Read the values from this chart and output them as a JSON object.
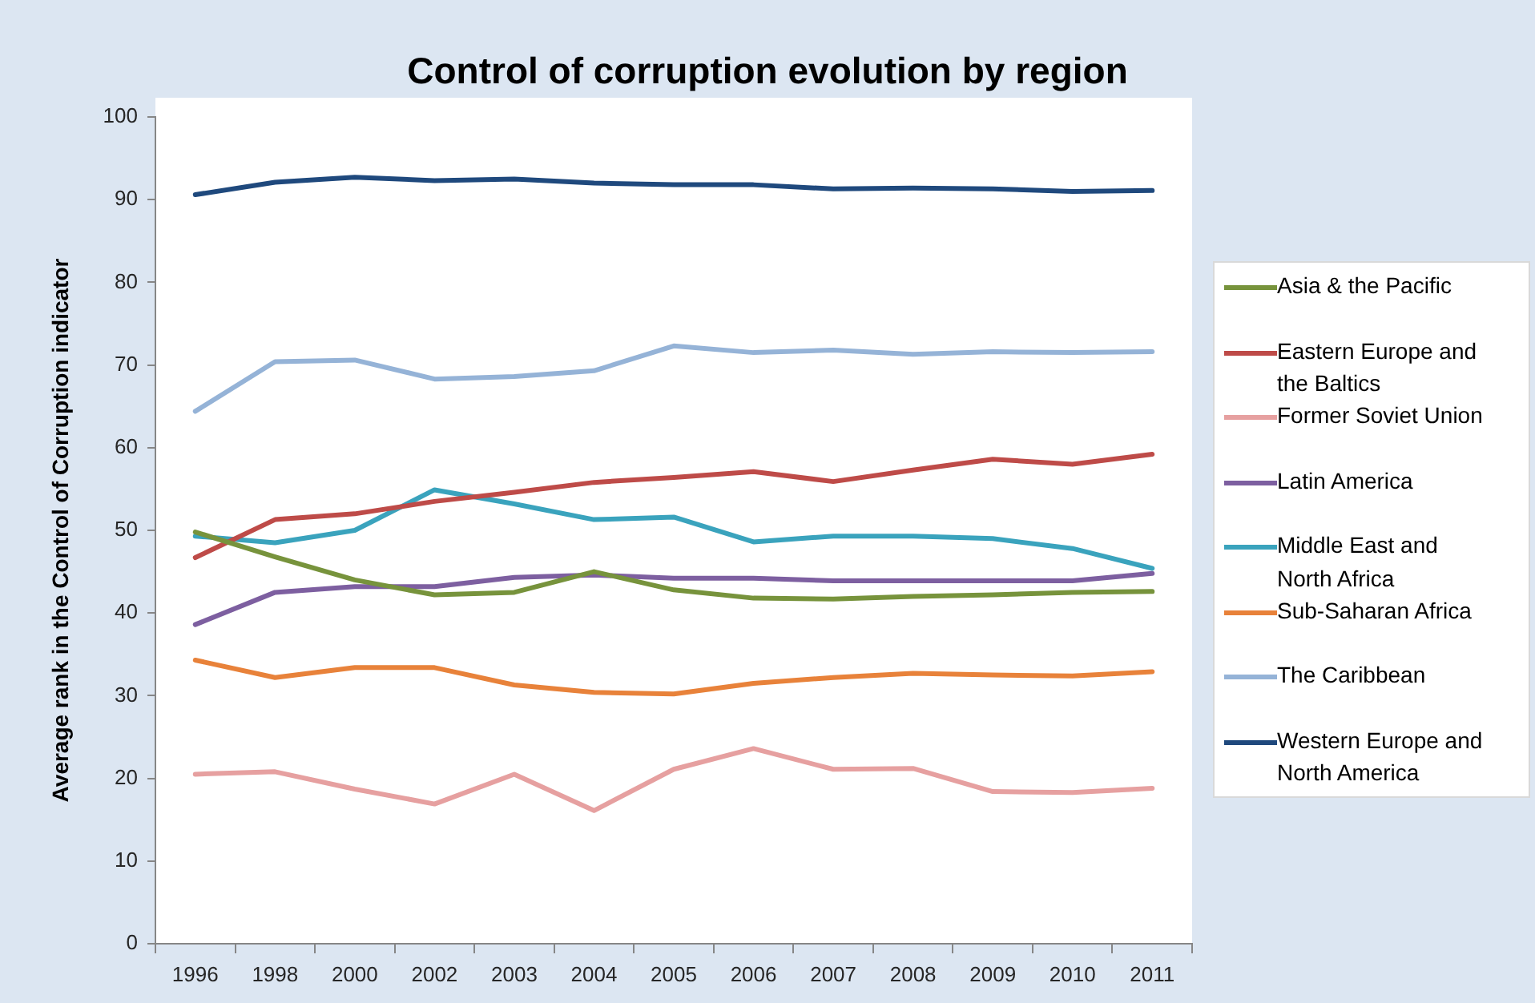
{
  "chart_data": {
    "type": "line",
    "title": "Control of corruption evolution by region",
    "ylabel": "Average rank in the Control of Corruption indicator",
    "categories": [
      "1996",
      "1998",
      "2000",
      "2002",
      "2003",
      "2004",
      "2005",
      "2006",
      "2007",
      "2008",
      "2009",
      "2010",
      "2011"
    ],
    "ylim": [
      0,
      100
    ],
    "yticks": [
      0,
      10,
      20,
      30,
      40,
      50,
      60,
      70,
      80,
      90,
      100
    ],
    "legend": "right",
    "series": [
      {
        "name": "Asia & the Pacific",
        "color": "#77933c",
        "values": [
          49.8,
          46.8,
          44.0,
          42.2,
          42.5,
          45.0,
          42.8,
          41.8,
          41.7,
          42.0,
          42.2,
          42.5,
          42.6
        ]
      },
      {
        "name": "Eastern Europe and the Baltics",
        "color": "#be4b48",
        "values": [
          46.7,
          51.3,
          52.0,
          53.5,
          54.6,
          55.8,
          56.4,
          57.1,
          55.9,
          57.3,
          58.6,
          58.0,
          59.2
        ]
      },
      {
        "name": "Former Soviet Union",
        "color": "#e6a0a0",
        "values": [
          20.5,
          20.8,
          18.7,
          16.9,
          20.5,
          16.1,
          21.1,
          23.6,
          21.1,
          21.2,
          18.4,
          18.3,
          18.8
        ]
      },
      {
        "name": "Latin America",
        "color": "#7d5fa0",
        "values": [
          38.6,
          42.5,
          43.2,
          43.2,
          44.3,
          44.6,
          44.2,
          44.2,
          43.9,
          43.9,
          43.9,
          43.9,
          44.8
        ]
      },
      {
        "name": "Middle East and North Africa",
        "color": "#3aa3bd",
        "values": [
          49.3,
          48.5,
          50.0,
          54.9,
          53.2,
          51.3,
          51.6,
          48.6,
          49.3,
          49.3,
          49.0,
          47.8,
          45.4
        ]
      },
      {
        "name": "Sub-Saharan Africa",
        "color": "#e8823a",
        "values": [
          34.3,
          32.2,
          33.4,
          33.4,
          31.3,
          30.4,
          30.2,
          31.5,
          32.2,
          32.7,
          32.5,
          32.4,
          32.9
        ]
      },
      {
        "name": "The Caribbean",
        "color": "#95b3d7",
        "values": [
          64.4,
          70.4,
          70.6,
          68.3,
          68.6,
          69.3,
          72.3,
          71.5,
          71.8,
          71.3,
          71.6,
          71.5,
          71.6
        ]
      },
      {
        "name": "Western Europe and North America",
        "color": "#1f497d",
        "values": [
          90.6,
          92.1,
          92.7,
          92.3,
          92.5,
          92.0,
          91.8,
          91.8,
          91.3,
          91.4,
          91.3,
          91.0,
          91.1
        ]
      }
    ]
  }
}
